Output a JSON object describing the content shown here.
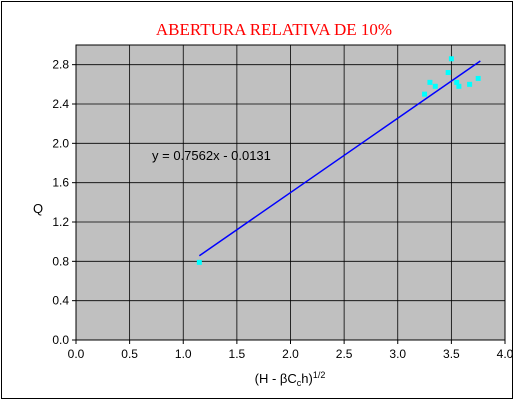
{
  "chart_data": {
    "type": "scatter",
    "title": "ABERTURA RELATIVA DE 10%",
    "xlabel": "(H - βC",
    "xlabel_sub": "c",
    "xlabel_tail": "h)",
    "xlabel_sup": "1/2",
    "ylabel": "Q",
    "xlim": [
      0.0,
      4.0
    ],
    "ylim": [
      0.0,
      3.0
    ],
    "x_ticks": [
      "0.0",
      "0.5",
      "1.0",
      "1.5",
      "2.0",
      "2.5",
      "3.0",
      "3.5",
      "4.0"
    ],
    "y_ticks": [
      "0.0",
      "0.4",
      "0.8",
      "1.2",
      "1.6",
      "2.0",
      "2.4",
      "2.8"
    ],
    "grid": true,
    "plot_background": "#c0c0c0",
    "points_color": "#00ffff",
    "trendline_color": "#0000ff",
    "series": [
      {
        "points": [
          [
            1.15,
            0.79
          ],
          [
            3.25,
            2.5
          ],
          [
            3.3,
            2.62
          ],
          [
            3.35,
            2.58
          ],
          [
            3.47,
            2.72
          ],
          [
            3.5,
            2.86
          ],
          [
            3.55,
            2.62
          ],
          [
            3.57,
            2.58
          ],
          [
            3.67,
            2.6
          ],
          [
            3.75,
            2.66
          ]
        ]
      }
    ],
    "trendline": {
      "slope": 0.7562,
      "intercept": -0.0131,
      "x_range": [
        1.15,
        3.77
      ],
      "label": "y = 0.7562x - 0.0131"
    }
  }
}
